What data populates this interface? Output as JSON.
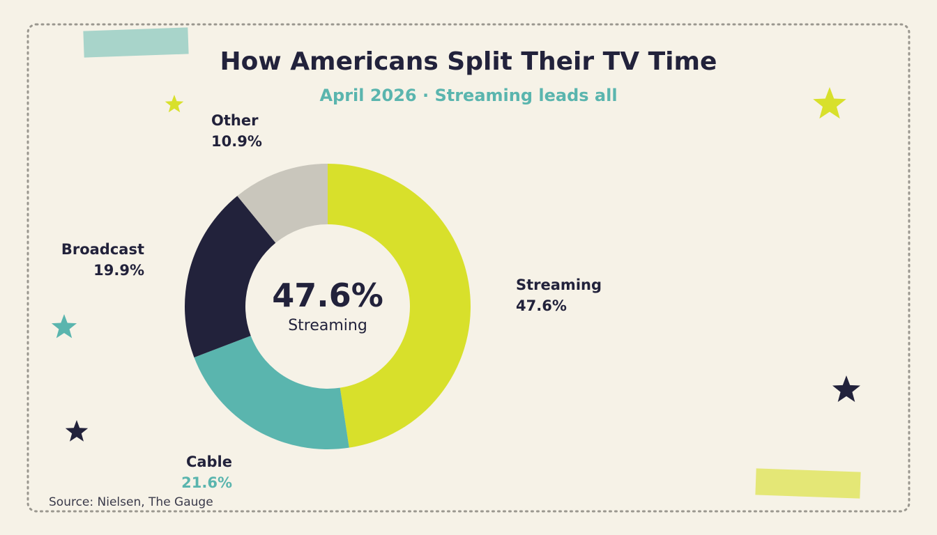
{
  "header": {
    "title": "How Americans Split Their TV Time",
    "subtitle": "April 2026 · Streaming leads all"
  },
  "center": {
    "value": "47.6%",
    "label": "Streaming"
  },
  "source": "Source: Nielsen, The Gauge",
  "colors": {
    "background": "#f6f2e7",
    "text": "#22223b",
    "accent_teal": "#5ab5ae",
    "accent_lime": "#d8e02b"
  },
  "decorations": {
    "stars": [
      "lime-star",
      "lime-star",
      "teal-star",
      "navy-star",
      "navy-star"
    ],
    "tape": [
      "teal-tape",
      "lime-tape"
    ]
  },
  "chart_data": {
    "type": "pie",
    "variant": "donut",
    "title": "How Americans Split Their TV Time",
    "subtitle": "April 2026 · Streaming leads all",
    "legend": "none",
    "slices": [
      {
        "label": "Streaming",
        "value": 47.6,
        "display": "47.6%",
        "color": "#d8e02b",
        "value_color": "#22223b"
      },
      {
        "label": "Cable",
        "value": 21.6,
        "display": "21.6%",
        "color": "#5ab5ae",
        "value_color": "#5ab5ae"
      },
      {
        "label": "Broadcast",
        "value": 19.9,
        "display": "19.9%",
        "color": "#22223b",
        "value_color": "#22223b"
      },
      {
        "label": "Other",
        "value": 10.9,
        "display": "10.9%",
        "color": "#c9c6bc",
        "value_color": "#22223b"
      }
    ]
  }
}
